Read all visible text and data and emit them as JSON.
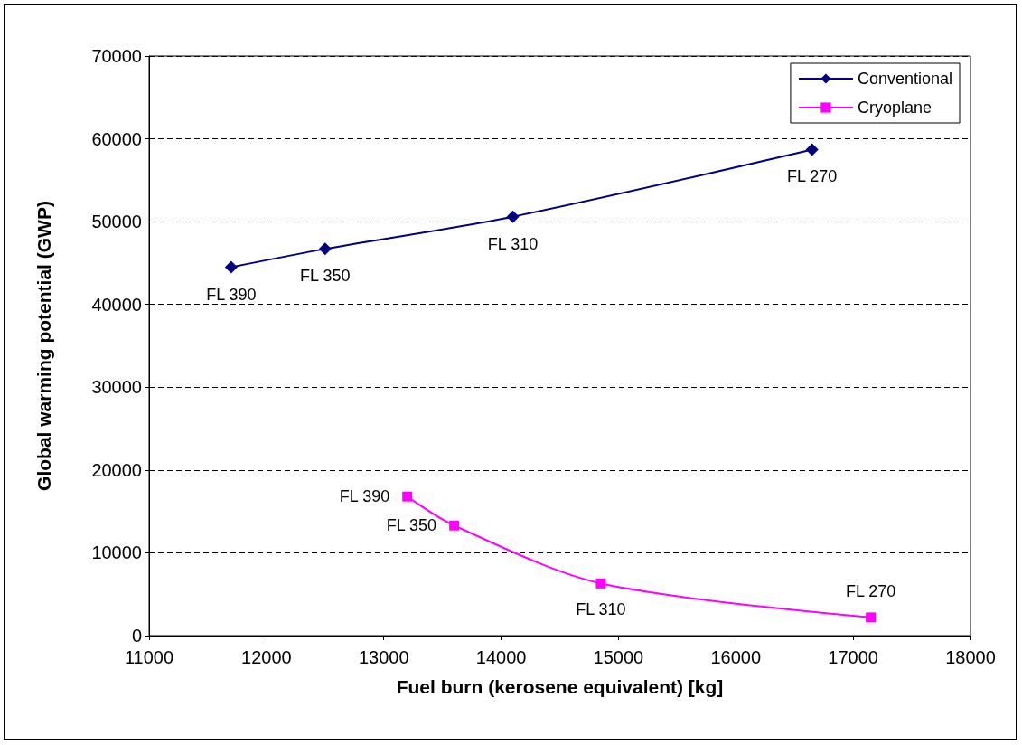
{
  "chart_data": {
    "type": "line",
    "xlabel": "Fuel burn (kerosene equivalent) [kg]",
    "ylabel": "Global warming potential (GWP)",
    "xlim": [
      11000,
      18000
    ],
    "xticks": [
      11000,
      12000,
      13000,
      14000,
      15000,
      16000,
      17000,
      18000
    ],
    "ylim": [
      0,
      70000
    ],
    "yticks": [
      0,
      10000,
      20000,
      30000,
      40000,
      50000,
      60000,
      70000
    ],
    "grid": "y",
    "legend": "top right",
    "series": [
      {
        "name": "Conventional",
        "color": "#000080",
        "marker": "diamond",
        "x": [
          11700,
          12500,
          14100,
          16650
        ],
        "values": [
          44500,
          46700,
          50600,
          58700
        ],
        "value_labels": [
          "FL 390",
          "FL 350",
          "FL 310",
          "FL 270"
        ]
      },
      {
        "name": "Cryoplane",
        "color": "#ff00ff",
        "marker": "square",
        "x": [
          13200,
          13600,
          14850,
          17150
        ],
        "values": [
          16800,
          13300,
          6300,
          2200
        ],
        "value_labels": [
          "FL 390",
          "FL 350",
          "FL 310",
          "FL 270"
        ]
      }
    ]
  }
}
